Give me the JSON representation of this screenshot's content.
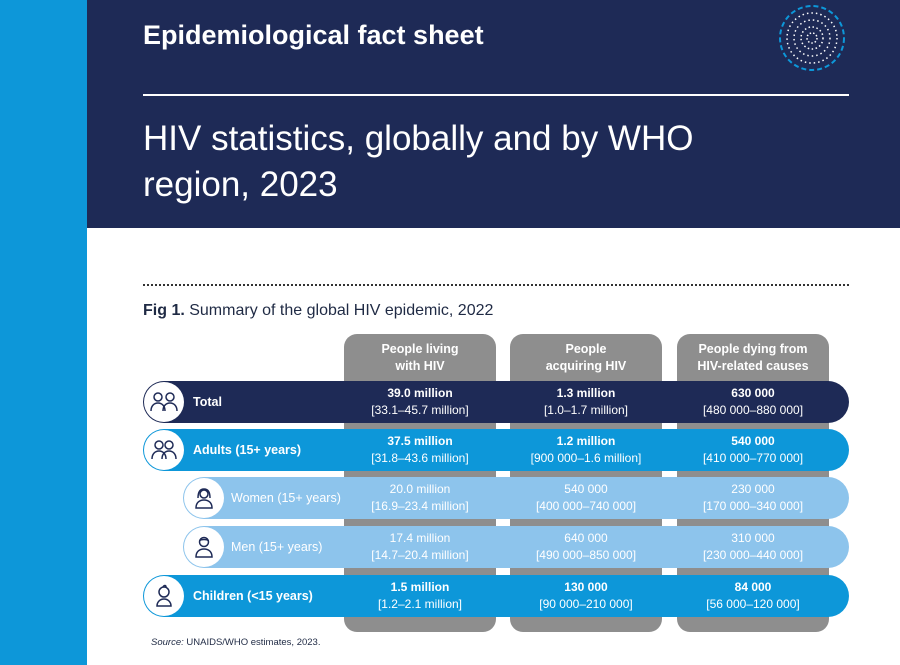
{
  "header": {
    "kicker": "Epidemiological fact sheet",
    "title": "HIV statistics, globally and by WHO region, 2023"
  },
  "figure": {
    "label": "Fig 1.",
    "caption": "Summary of the global HIV epidemic, 2022",
    "columns": [
      {
        "line1": "People living",
        "line2": "with HIV"
      },
      {
        "line1": "People",
        "line2": "acquiring HIV"
      },
      {
        "line1": "People dying from",
        "line2": "HIV-related causes"
      }
    ],
    "rows": [
      {
        "label": "Total",
        "icon": "group-icon",
        "cells": [
          {
            "est": "39.0 million",
            "range": "[33.1–45.7 million]"
          },
          {
            "est": "1.3 million",
            "range": "[1.0–1.7 million]"
          },
          {
            "est": "630 000",
            "range": "[480 000–880 000]"
          }
        ]
      },
      {
        "label": "Adults (15+ years)",
        "icon": "adults-icon",
        "cells": [
          {
            "est": "37.5 million",
            "range": "[31.8–43.6 million]"
          },
          {
            "est": "1.2 million",
            "range": "[900 000–1.6 million]"
          },
          {
            "est": "540 000",
            "range": "[410 000–770 000]"
          }
        ]
      },
      {
        "label": "Women (15+ years)",
        "icon": "woman-icon",
        "cells": [
          {
            "est": "20.0 million",
            "range": "[16.9–23.4 million]"
          },
          {
            "est": "540 000",
            "range": "[400 000–740 000]"
          },
          {
            "est": "230 000",
            "range": "[170 000–340 000]"
          }
        ]
      },
      {
        "label": "Men (15+ years)",
        "icon": "man-icon",
        "cells": [
          {
            "est": "17.4 million",
            "range": "[14.7–20.4 million]"
          },
          {
            "est": "640 000",
            "range": "[490 000–850 000]"
          },
          {
            "est": "310 000",
            "range": "[230 000–440 000]"
          }
        ]
      },
      {
        "label": "Children (<15 years)",
        "icon": "child-icon",
        "cells": [
          {
            "est": "1.5 million",
            "range": "[1.2–2.1 million]"
          },
          {
            "est": "130 000",
            "range": "[90 000–210 000]"
          },
          {
            "est": "84 000",
            "range": "[56 000–120 000]"
          }
        ]
      }
    ],
    "source_label": "Source:",
    "source_text": " UNAIDS/WHO estimates, 2023."
  },
  "colors": {
    "navy": "#1e2a56",
    "blue": "#0d97d9",
    "light_blue": "#8dc4ec",
    "grey": "#8e8e8e"
  }
}
